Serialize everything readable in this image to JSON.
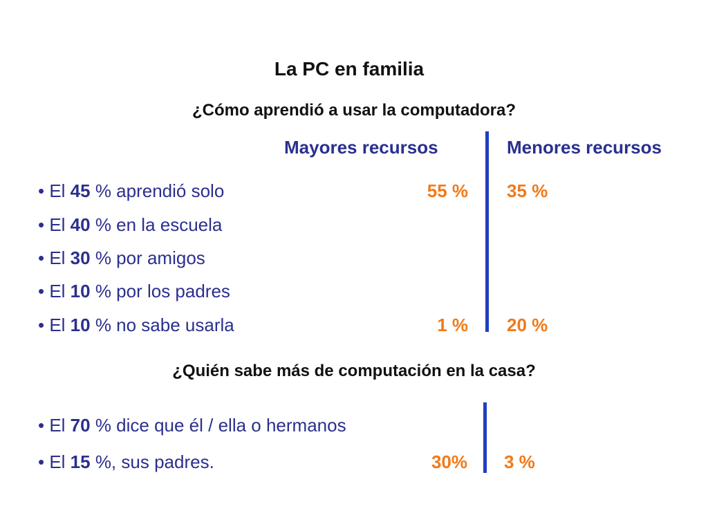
{
  "title": "La PC en familia",
  "section1": {
    "question": "¿Cómo aprendió a usar la computadora?",
    "col_left_header": "Mayores recursos",
    "col_right_header": "Menores recursos",
    "rows": [
      {
        "prefix": "• El ",
        "pct": "45",
        "suffix": " % aprendió solo",
        "left_value": "55 %",
        "right_value": "35 %"
      },
      {
        "prefix": "• El ",
        "pct": "40",
        "suffix": " % en la escuela",
        "left_value": "",
        "right_value": ""
      },
      {
        "prefix": "• El ",
        "pct": "30",
        "suffix": " % por amigos",
        "left_value": "",
        "right_value": ""
      },
      {
        "prefix": "• El ",
        "pct": "10",
        "suffix": " % por los padres",
        "left_value": "",
        "right_value": ""
      },
      {
        "prefix": "• El ",
        "pct": "10",
        "suffix": " % no sabe usarla",
        "left_value": "1 %",
        "right_value": "20 %"
      }
    ]
  },
  "section2": {
    "question": "¿Quién sabe más de computación en la casa?",
    "rows": [
      {
        "prefix": "• El ",
        "pct": "70",
        "suffix": " % dice que él / ella o hermanos",
        "left_value": "",
        "right_value": ""
      },
      {
        "prefix": "• El ",
        "pct": "15",
        "suffix": " %, sus padres.",
        "left_value": "30%",
        "right_value": "3 %"
      }
    ]
  },
  "colors": {
    "text_blue": "#2b2f8e",
    "value_orange": "#f07a1a",
    "divider_blue": "#1f3fbf"
  }
}
